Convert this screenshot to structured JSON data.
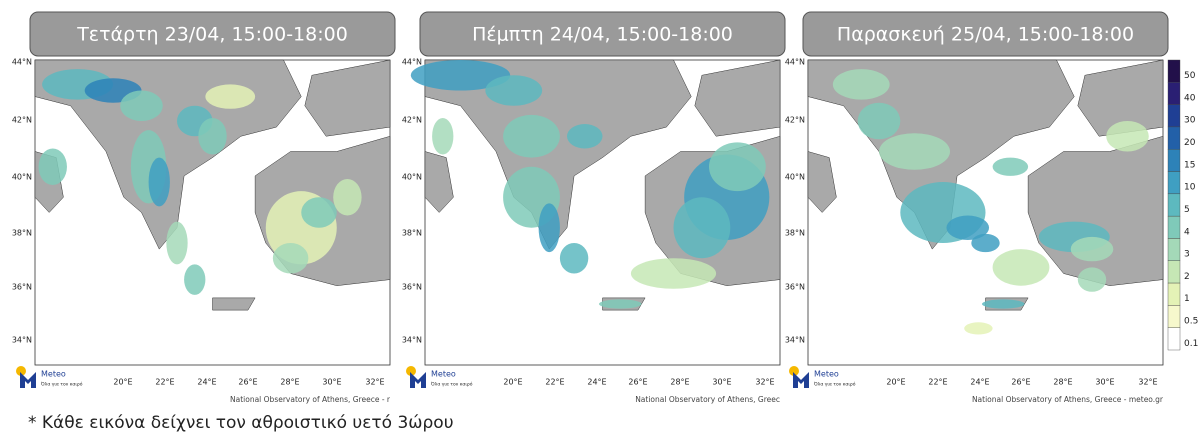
{
  "panels": [
    {
      "title": "Τετάρτη 23/04, 15:00-18:00",
      "credit": "National Observatory of Athens, Greece - r"
    },
    {
      "title": "Πέμπτη 24/04, 15:00-18:00",
      "credit": "National Observatory of Athens, Greec"
    },
    {
      "title": "Παρασκευή 25/04, 15:00-18:00",
      "credit": "National Observatory of Athens, Greece - meteo.gr"
    }
  ],
  "lat_labels": [
    "44°N",
    "42°N",
    "40°N",
    "38°N",
    "36°N",
    "34°N"
  ],
  "lon_labels": [
    "20°E",
    "22°E",
    "24°E",
    "26°E",
    "28°E",
    "30°E",
    "32°E"
  ],
  "logo": {
    "name": "Meteo",
    "tagline": "Όλα για τον καιρό"
  },
  "colorbar": [
    {
      "value": 50,
      "color": "#22104a"
    },
    {
      "value": 40,
      "color": "#2a1f73"
    },
    {
      "value": 30,
      "color": "#1f3f94"
    },
    {
      "value": 20,
      "color": "#2260a8"
    },
    {
      "value": 15,
      "color": "#2d82b8"
    },
    {
      "value": 10,
      "color": "#3f9fc2"
    },
    {
      "value": 5,
      "color": "#5db9bf"
    },
    {
      "value": 4,
      "color": "#7fcab9"
    },
    {
      "value": 3,
      "color": "#a4d9b8"
    },
    {
      "value": 2,
      "color": "#c6e7b5"
    },
    {
      "value": 1,
      "color": "#e4f2b6"
    },
    {
      "value": 0.5,
      "color": "#f6f8cc"
    },
    {
      "value": 0.1,
      "color": "#ffffff"
    }
  ],
  "footnote": "* Κάθε εικόνα δείχνει τον αθροιστικό υετό 3ώρου"
}
